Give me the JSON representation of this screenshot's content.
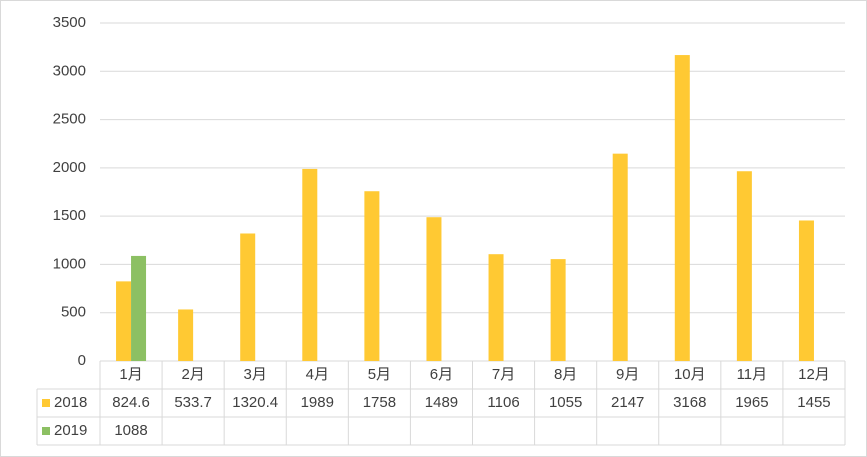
{
  "chart_data": {
    "type": "bar",
    "categories": [
      "1月",
      "2月",
      "3月",
      "4月",
      "5月",
      "6月",
      "7月",
      "8月",
      "9月",
      "10月",
      "11月",
      "12月"
    ],
    "series": [
      {
        "name": "2018",
        "color": "#FFC933",
        "values": [
          824.6,
          533.7,
          1320.4,
          1989,
          1758,
          1489,
          1106,
          1055,
          2147,
          3168,
          1965,
          1455
        ]
      },
      {
        "name": "2019",
        "color": "#8CC063",
        "values": [
          1088,
          null,
          null,
          null,
          null,
          null,
          null,
          null,
          null,
          null,
          null,
          null
        ]
      }
    ],
    "ylim": [
      0,
      3500
    ],
    "yticks": [
      0,
      500,
      1000,
      1500,
      2000,
      2500,
      3000,
      3500
    ],
    "grid": true,
    "data_table": true
  }
}
